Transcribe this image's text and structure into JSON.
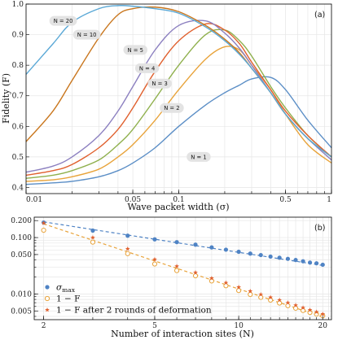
{
  "chart_data": [
    {
      "type": "line",
      "panel_label": "(a)",
      "xlabel": "Wave packet width (σ)",
      "ylabel": "Fidelity (F)",
      "xscale": "log",
      "xlim": [
        0.01,
        1
      ],
      "ylim": [
        0.38,
        1.0
      ],
      "x_ticks": [
        0.01,
        0.05,
        0.1,
        0.5,
        1
      ],
      "x_tick_labels": [
        "0.01",
        "0.05",
        "0.1",
        "0.5",
        "1"
      ],
      "y_ticks": [
        0.4,
        0.5,
        0.6,
        0.7,
        0.8,
        0.9,
        1.0
      ],
      "y_tick_labels": [
        "0.4",
        "0.5",
        "0.6",
        "0.7",
        "0.8",
        "0.9",
        "1.0"
      ],
      "grid": true,
      "x": [
        0.01,
        0.015,
        0.02,
        0.03,
        0.04,
        0.05,
        0.07,
        0.1,
        0.15,
        0.2,
        0.25,
        0.3,
        0.4,
        0.5,
        0.7,
        1.0
      ],
      "series": [
        {
          "name": "N = 1",
          "color": "#5b8ec6",
          "label_at": [
            0.135,
            0.5
          ],
          "values": [
            0.41,
            0.415,
            0.42,
            0.435,
            0.455,
            0.48,
            0.53,
            0.6,
            0.67,
            0.71,
            0.735,
            0.755,
            0.76,
            0.72,
            0.62,
            0.53
          ]
        },
        {
          "name": "N = 2",
          "color": "#e8a33a",
          "label_at": [
            0.09,
            0.66
          ],
          "values": [
            0.42,
            0.425,
            0.435,
            0.46,
            0.5,
            0.54,
            0.62,
            0.72,
            0.82,
            0.86,
            0.85,
            0.8,
            0.72,
            0.64,
            0.54,
            0.48
          ]
        },
        {
          "name": "N = 3",
          "color": "#8fb04d",
          "label_at": [
            0.075,
            0.74
          ],
          "values": [
            0.43,
            0.44,
            0.455,
            0.49,
            0.54,
            0.59,
            0.69,
            0.8,
            0.9,
            0.915,
            0.88,
            0.83,
            0.73,
            0.66,
            0.57,
            0.5
          ]
        },
        {
          "name": "N = 4",
          "color": "#e0602e",
          "label_at": [
            0.062,
            0.79
          ],
          "values": [
            0.44,
            0.455,
            0.475,
            0.53,
            0.59,
            0.66,
            0.78,
            0.88,
            0.935,
            0.915,
            0.87,
            0.81,
            0.72,
            0.65,
            0.57,
            0.5
          ]
        },
        {
          "name": "N = 5",
          "color": "#8c80c0",
          "label_at": [
            0.052,
            0.85
          ],
          "values": [
            0.45,
            0.47,
            0.5,
            0.57,
            0.65,
            0.73,
            0.85,
            0.93,
            0.945,
            0.905,
            0.855,
            0.8,
            0.71,
            0.64,
            0.56,
            0.49
          ]
        },
        {
          "name": "N = 10",
          "color": "#c9761d",
          "label_at": [
            0.025,
            0.9
          ],
          "values": [
            0.55,
            0.65,
            0.75,
            0.89,
            0.965,
            0.985,
            0.99,
            0.975,
            0.93,
            0.885,
            0.84,
            0.79,
            0.71,
            0.64,
            0.56,
            0.5
          ]
        },
        {
          "name": "N = 20",
          "color": "#5aa8d6",
          "label_at": [
            0.0175,
            0.945
          ],
          "values": [
            0.77,
            0.87,
            0.94,
            0.985,
            0.995,
            0.993,
            0.985,
            0.97,
            0.925,
            0.88,
            0.835,
            0.79,
            0.71,
            0.64,
            0.56,
            0.5
          ]
        }
      ]
    },
    {
      "type": "scatter",
      "panel_label": "(b)",
      "xlabel": "Number of interaction sites (N)",
      "ylabel": "",
      "xscale": "log",
      "yscale": "log",
      "xlim": [
        1.85,
        21.5
      ],
      "ylim": [
        0.0035,
        0.23
      ],
      "x_ticks": [
        2,
        5,
        10,
        20
      ],
      "x_tick_labels": [
        "2",
        "5",
        "10",
        "20"
      ],
      "y_ticks": [
        0.005,
        0.01,
        0.05,
        0.1,
        0.2
      ],
      "y_tick_labels": [
        "0.005",
        "0.010",
        "0.050",
        "0.100",
        "0.200"
      ],
      "grid": true,
      "legend_position": "bottom-left",
      "series": [
        {
          "name": "σmax",
          "label_base": "σ",
          "label_sub": "max",
          "marker": "filled-circle",
          "color": "#4f83c4",
          "x": [
            2,
            3,
            4,
            5,
            6,
            7,
            8,
            9,
            10,
            11,
            12,
            13,
            14,
            15,
            16,
            17,
            18,
            19,
            20
          ],
          "values": [
            0.185,
            0.133,
            0.108,
            0.093,
            0.083,
            0.075,
            0.067,
            0.061,
            0.056,
            0.052,
            0.049,
            0.046,
            0.044,
            0.042,
            0.04,
            0.038,
            0.036,
            0.035,
            0.033
          ],
          "fit": {
            "x": [
              2,
              20
            ],
            "values": [
              0.19,
              0.032
            ]
          }
        },
        {
          "name": "1 − F",
          "marker": "open-circle",
          "color": "#e8a33a",
          "x": [
            2,
            3,
            4,
            5,
            6,
            7,
            8,
            9,
            10,
            11,
            12,
            13,
            14,
            15,
            16,
            17,
            18,
            19,
            20
          ],
          "values": [
            0.135,
            0.083,
            0.052,
            0.034,
            0.026,
            0.021,
            0.017,
            0.014,
            0.0115,
            0.0098,
            0.0087,
            0.0078,
            0.0069,
            0.0062,
            0.0056,
            0.0051,
            0.0047,
            0.0044,
            0.0041
          ],
          "fit": {
            "x": [
              2,
              20
            ],
            "values": [
              0.175,
              0.0039
            ]
          }
        },
        {
          "name": "1 − F after 2 rounds of deformation",
          "marker": "star",
          "color": "#e0602e",
          "x": [
            2,
            3,
            4,
            5,
            6,
            7,
            8,
            9,
            10,
            11,
            12,
            13,
            14,
            15,
            16,
            17,
            18,
            19,
            20
          ],
          "values": [
            0.18,
            0.1,
            0.063,
            0.041,
            0.031,
            0.024,
            0.019,
            0.0158,
            0.0132,
            0.0112,
            0.0098,
            0.0087,
            0.0078,
            0.007,
            0.0063,
            0.0057,
            0.0052,
            0.0048,
            0.0044
          ]
        }
      ]
    }
  ]
}
